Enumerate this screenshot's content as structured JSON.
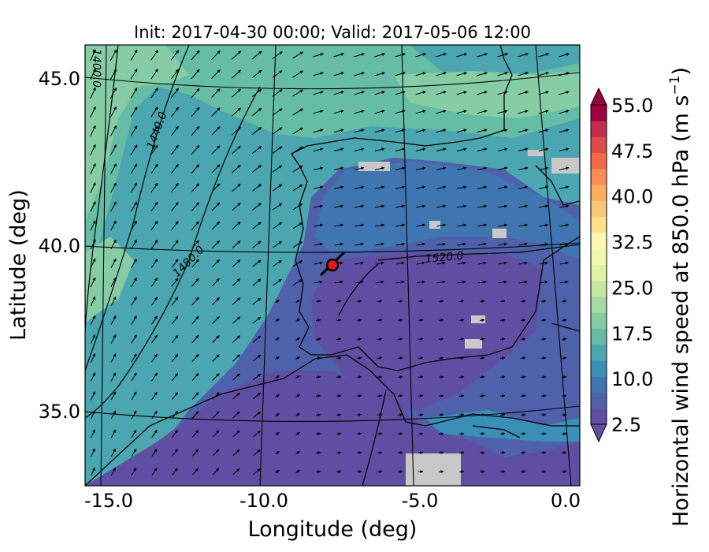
{
  "figure": {
    "title": "Init: 2017-04-30 00:00; Valid: 2017-05-06 12:00",
    "xlabel": "Longitude (deg)",
    "ylabel": "Latitude (deg)",
    "x_ticks": [
      "-15.0",
      "-10.0",
      "-5.0",
      "0.0"
    ],
    "y_ticks": [
      "45.0",
      "40.0",
      "35.0"
    ]
  },
  "colorbar": {
    "label_main": "Horizontal wind speed at 850.0 hPa (m s",
    "label_exp": "−1",
    "label_close": ")",
    "tick_labels": [
      "55.0",
      "47.5",
      "40.0",
      "32.5",
      "25.0",
      "17.5",
      "10.0",
      "2.5"
    ],
    "range": [
      2.5,
      55.0
    ],
    "extend": "both",
    "colors": [
      "#5e4fa2",
      "#4f61aa",
      "#3f76b2",
      "#3a8fb7",
      "#4ba6b1",
      "#66bda5",
      "#86cda5",
      "#a7dba4",
      "#c5e8a0",
      "#e0f3a0",
      "#f2f9ac",
      "#fef6b1",
      "#fee08b",
      "#fdc676",
      "#fdad60",
      "#f88e53",
      "#ef6a45",
      "#dc4c4b",
      "#c42c4c",
      "#9e0142"
    ]
  },
  "contours": {
    "variable": "geopotential height",
    "labels": [
      "1400.0",
      "1440.0",
      "1480.0",
      "1520.0"
    ]
  },
  "marker": {
    "color": "#e8131b",
    "lon": -7.6,
    "lat": 39.3
  }
}
